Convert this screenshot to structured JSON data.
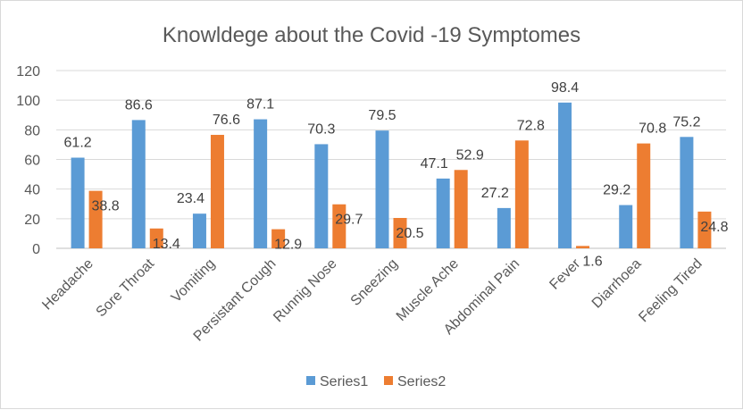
{
  "chart_data": {
    "type": "bar",
    "title": "Knowldege about the Covid -19 Symptomes",
    "categories": [
      "Headache",
      "Sore Throat",
      "Vomiting",
      "Persistant Cough",
      "Runnig Nose",
      "Sneezing",
      "Muscle Ache",
      "Abdominal Pain",
      "Fever",
      "Diarrhoea",
      "Feeling Tired"
    ],
    "series": [
      {
        "name": "Series1",
        "color": "#5b9bd5",
        "values": [
          61.2,
          86.6,
          23.4,
          87.1,
          70.3,
          79.5,
          47.1,
          27.2,
          98.4,
          29.2,
          75.2
        ]
      },
      {
        "name": "Series2",
        "color": "#ed7d31",
        "values": [
          38.8,
          13.4,
          76.6,
          12.9,
          29.7,
          20.5,
          52.9,
          72.8,
          1.6,
          70.8,
          24.8
        ]
      }
    ],
    "xlabel": "",
    "ylabel": "",
    "ylim": [
      0,
      120
    ],
    "yticks": [
      0,
      20,
      40,
      60,
      80,
      100,
      120
    ],
    "grid": true,
    "legend": "bottom"
  }
}
